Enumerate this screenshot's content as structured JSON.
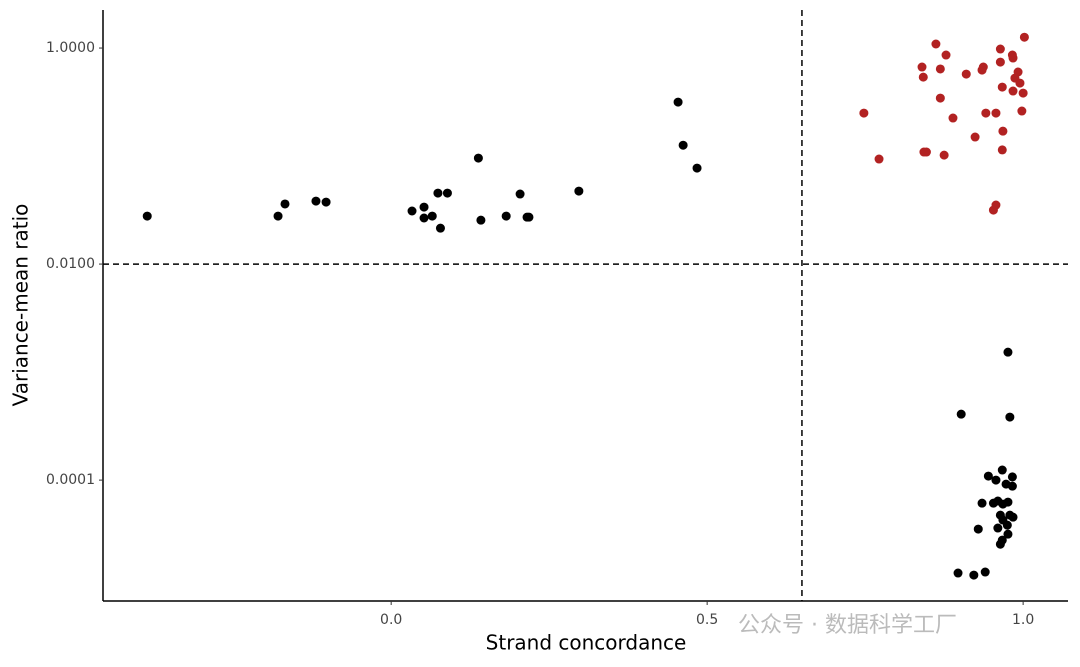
{
  "chart_data": {
    "type": "scatter",
    "x_label": "Strand concordance",
    "y_label": "Variance-mean ratio",
    "log_y": true,
    "grid": false,
    "xlim": [
      -0.456,
      1.071
    ],
    "ylim": [
      7.6e-06,
      2.25
    ],
    "xticks": [
      {
        "value": 0,
        "label": "0.0"
      },
      {
        "value": 0.5,
        "label": "0.5"
      },
      {
        "value": 1,
        "label": "1.0"
      }
    ],
    "yticks": [
      {
        "value": 0.0001,
        "label": "0.0001"
      },
      {
        "value": 0.01,
        "label": "0.0100"
      },
      {
        "value": 1,
        "label": "1.0000"
      }
    ],
    "vline": 0.65,
    "hline": 0.01,
    "series": [
      {
        "color": "#000000",
        "x": [
          -0.386,
          -0.179,
          -0.168,
          -0.119,
          -0.103,
          0.033,
          0.052,
          0.052,
          0.065,
          0.074,
          0.089,
          0.078,
          0.138,
          0.142,
          0.182,
          0.204,
          0.215,
          0.218,
          0.297,
          0.454,
          0.462,
          0.484,
          0.976,
          0.902,
          0.979,
          0.967,
          0.945,
          0.983,
          0.957,
          0.973,
          0.983,
          0.935,
          0.953,
          0.96,
          0.968,
          0.976,
          0.964,
          0.979,
          0.984,
          0.968,
          0.96,
          0.975,
          0.929,
          0.976,
          0.967,
          0.964,
          0.897,
          0.922,
          0.94
        ],
        "values": [
          0.0278,
          0.0278,
          0.036,
          0.0383,
          0.0375,
          0.031,
          0.0337,
          0.0267,
          0.0278,
          0.0454,
          0.0454,
          0.0215,
          0.0958,
          0.0255,
          0.0278,
          0.0445,
          0.0272,
          0.0272,
          0.0474,
          0.316,
          0.126,
          0.0774,
          0.00153,
          0.000408,
          0.000383,
          0.000124,
          0.000109,
          0.000107,
          0.0001,
          9.18e-05,
          8.79e-05,
          6.12e-05,
          6.12e-05,
          6.4e-05,
          6e-05,
          6.26e-05,
          4.74e-05,
          4.74e-05,
          4.54e-05,
          4.27e-05,
          3.6e-05,
          3.83e-05,
          3.52e-05,
          3.16e-05,
          2.78e-05,
          2.55e-05,
          1.38e-05,
          1.32e-05,
          1.41e-05
        ]
      },
      {
        "color": "#b22222",
        "x": [
          0.862,
          1.002,
          0.878,
          0.964,
          0.983,
          0.984,
          0.964,
          0.84,
          0.869,
          0.937,
          0.935,
          0.91,
          0.992,
          0.842,
          0.987,
          0.995,
          0.967,
          0.984,
          1.0,
          0.869,
          0.748,
          0.941,
          0.957,
          0.998,
          0.889,
          0.924,
          0.968,
          0.843,
          0.847,
          0.875,
          0.967,
          0.772,
          0.957,
          0.953
        ],
        "values": [
          1.09,
          1.26,
          0.861,
          0.979,
          0.861,
          0.808,
          0.741,
          0.667,
          0.64,
          0.667,
          0.625,
          0.574,
          0.6,
          0.538,
          0.527,
          0.474,
          0.435,
          0.4,
          0.383,
          0.344,
          0.25,
          0.25,
          0.25,
          0.261,
          0.225,
          0.15,
          0.17,
          0.109,
          0.109,
          0.102,
          0.114,
          0.0938,
          0.0352,
          0.0316
        ]
      }
    ]
  },
  "watermark": "公众号 · 数据科学工厂"
}
